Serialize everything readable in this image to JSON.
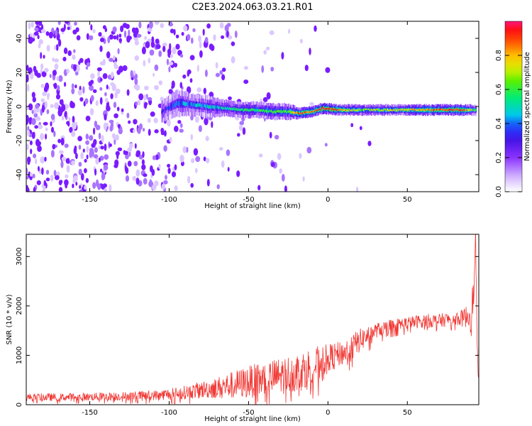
{
  "figure_title": "C2E3.2024.063.03.21.R01",
  "colors": {
    "snr_line": "#f03a36",
    "axis": "#000000",
    "spectrogram_base": "#7a1cff",
    "colormap": [
      "#ffffff",
      "#d9c4ff",
      "#8a3cff",
      "#3a10e0",
      "#1a3cff",
      "#00d0e8",
      "#00f060",
      "#c8f000",
      "#ffd000",
      "#ff6000",
      "#ff1010",
      "#ff1080"
    ]
  },
  "chart_data": [
    {
      "type": "heatmap",
      "title": "",
      "xlabel": "Height of straight line (km)",
      "ylabel": "Frequency (Hz)",
      "xlim": [
        -190,
        95
      ],
      "ylim": [
        -50,
        50
      ],
      "xticks": [
        -150,
        -100,
        -50,
        0,
        50
      ],
      "yticks": [
        -40,
        -20,
        0,
        20,
        40
      ],
      "grid": false,
      "colorbar": {
        "label": "Normalized spectral amplitude",
        "range": [
          0,
          1
        ],
        "ticks": [
          "0.0",
          "0.2",
          "0.4",
          "0.6",
          "0.8"
        ],
        "tick_values": [
          0.0,
          0.2,
          0.4,
          0.6,
          0.8
        ]
      },
      "signal_band": [
        {
          "x": -105,
          "center_hz": -3,
          "halfwidth_hz": 4,
          "amp": 0.3
        },
        {
          "x": -95,
          "center_hz": 2,
          "halfwidth_hz": 5,
          "amp": 0.4
        },
        {
          "x": -85,
          "center_hz": 1,
          "halfwidth_hz": 4,
          "amp": 0.45
        },
        {
          "x": -75,
          "center_hz": 0,
          "halfwidth_hz": 4,
          "amp": 0.45
        },
        {
          "x": -65,
          "center_hz": -1,
          "halfwidth_hz": 3,
          "amp": 0.5
        },
        {
          "x": -55,
          "center_hz": -2,
          "halfwidth_hz": 3,
          "amp": 0.55
        },
        {
          "x": -45,
          "center_hz": -2,
          "halfwidth_hz": 3,
          "amp": 0.55
        },
        {
          "x": -35,
          "center_hz": -3,
          "halfwidth_hz": 3,
          "amp": 0.6
        },
        {
          "x": -25,
          "center_hz": -3,
          "halfwidth_hz": 3,
          "amp": 0.6
        },
        {
          "x": -18,
          "center_hz": -4,
          "halfwidth_hz": 2,
          "amp": 0.9
        },
        {
          "x": -10,
          "center_hz": -3,
          "halfwidth_hz": 2,
          "amp": 0.85
        },
        {
          "x": -3,
          "center_hz": -1,
          "halfwidth_hz": 2,
          "amp": 0.95
        },
        {
          "x": 5,
          "center_hz": -2,
          "halfwidth_hz": 2,
          "amp": 0.9
        },
        {
          "x": 15,
          "center_hz": -2,
          "halfwidth_hz": 2,
          "amp": 0.7
        },
        {
          "x": 25,
          "center_hz": -2,
          "halfwidth_hz": 2,
          "amp": 0.65
        },
        {
          "x": 35,
          "center_hz": -2,
          "halfwidth_hz": 2,
          "amp": 0.7
        },
        {
          "x": 45,
          "center_hz": -2,
          "halfwidth_hz": 2,
          "amp": 0.75
        },
        {
          "x": 55,
          "center_hz": -2,
          "halfwidth_hz": 2,
          "amp": 0.8
        },
        {
          "x": 65,
          "center_hz": -2,
          "halfwidth_hz": 2,
          "amp": 0.85
        },
        {
          "x": 75,
          "center_hz": -2,
          "halfwidth_hz": 2,
          "amp": 0.9
        },
        {
          "x": 85,
          "center_hz": -2,
          "halfwidth_hz": 2,
          "amp": 0.9
        },
        {
          "x": 93,
          "center_hz": -2,
          "halfwidth_hz": 2,
          "amp": 0.6
        }
      ],
      "noise_density": [
        {
          "x": -190,
          "density": 0.75
        },
        {
          "x": -150,
          "density": 0.7
        },
        {
          "x": -110,
          "density": 0.55
        },
        {
          "x": -90,
          "density": 0.4
        },
        {
          "x": -70,
          "density": 0.25
        },
        {
          "x": -50,
          "density": 0.12
        },
        {
          "x": -30,
          "density": 0.05
        },
        {
          "x": -10,
          "density": 0.02
        },
        {
          "x": 95,
          "density": 0.0
        }
      ]
    },
    {
      "type": "line",
      "title": "",
      "xlabel": "Height of straight line (km)",
      "ylabel": "SNR (10 * v/v)",
      "xlim": [
        -190,
        95
      ],
      "ylim": [
        0,
        3450
      ],
      "xticks": [
        -150,
        -100,
        -50,
        0,
        50
      ],
      "yticks": [
        0,
        1000,
        2000,
        3000
      ],
      "grid": false,
      "series": [
        {
          "x": [
            -190,
            -170,
            -150,
            -130,
            -110,
            -100,
            -90,
            -80,
            -70,
            -60,
            -50,
            -40,
            -30,
            -20,
            -10,
            0,
            10,
            15,
            20,
            30,
            40,
            50,
            60,
            70,
            80,
            85,
            88,
            90,
            92,
            93,
            94,
            95
          ],
          "mean": [
            150,
            150,
            160,
            170,
            190,
            210,
            250,
            300,
            340,
            400,
            460,
            520,
            580,
            650,
            750,
            950,
            1050,
            1150,
            1300,
            1500,
            1600,
            1650,
            1700,
            1700,
            1750,
            1750,
            1800,
            1850,
            2300,
            3400,
            1000,
            600
          ],
          "spread": [
            80,
            80,
            80,
            90,
            100,
            120,
            140,
            170,
            220,
            280,
            330,
            360,
            380,
            400,
            420,
            280,
            250,
            280,
            240,
            150,
            140,
            130,
            140,
            140,
            150,
            180,
            250,
            400,
            300,
            300,
            200,
            150
          ]
        }
      ]
    }
  ]
}
